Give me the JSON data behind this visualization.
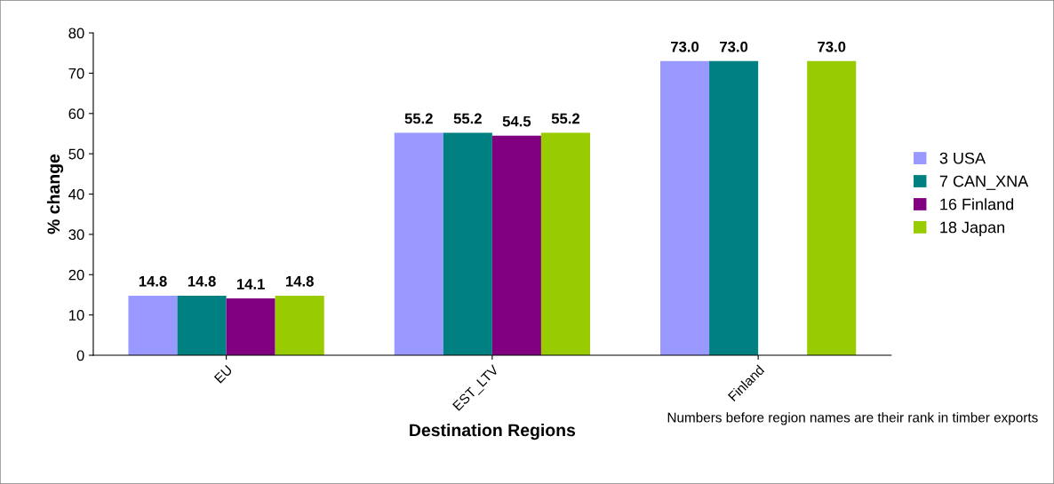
{
  "chart_data": {
    "type": "bar",
    "xlabel": "Destination Regions",
    "ylabel": "% change",
    "categories": [
      "EU",
      "EST_LTV",
      "Finland"
    ],
    "series": [
      {
        "name": "3 USA",
        "color": "#9999ff",
        "values": [
          14.8,
          55.2,
          73.0
        ],
        "value_labels": [
          "14.8",
          "55.2",
          "73.0"
        ]
      },
      {
        "name": "7 CAN_XNA",
        "color": "#008080",
        "values": [
          14.8,
          55.2,
          73.0
        ],
        "value_labels": [
          "14.8",
          "55.2",
          "73.0"
        ]
      },
      {
        "name": "16 Finland",
        "color": "#800080",
        "values": [
          14.1,
          54.5,
          null
        ],
        "value_labels": [
          "14.1",
          "54.5",
          null
        ]
      },
      {
        "name": "18 Japan",
        "color": "#99cc00",
        "values": [
          14.8,
          55.2,
          73.0
        ],
        "value_labels": [
          "14.8",
          "55.2",
          "73.0"
        ]
      }
    ],
    "ylim": [
      0,
      80
    ],
    "yticks": [
      0,
      10,
      20,
      30,
      40,
      50,
      60,
      70,
      80
    ],
    "grid": false,
    "legend": "right",
    "annotations": [
      "Numbers before region names are their rank in timber exports"
    ]
  }
}
